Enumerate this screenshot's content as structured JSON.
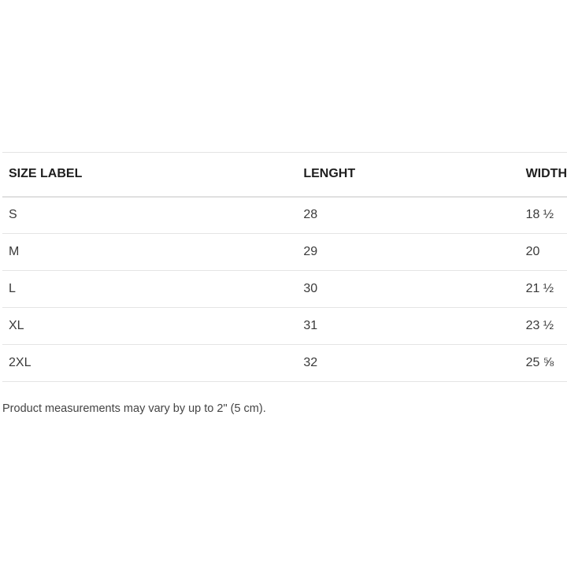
{
  "table": {
    "headers": [
      "SIZE LABEL",
      "LENGHT",
      "WIDTH"
    ],
    "rows": [
      [
        "S",
        "28",
        "18 ½"
      ],
      [
        "M",
        "29",
        "20"
      ],
      [
        "L",
        "30",
        "21 ½"
      ],
      [
        "XL",
        "31",
        "23 ½"
      ],
      [
        "2XL",
        "32",
        "25 ⅝"
      ]
    ]
  },
  "note": "Product measurements may vary by up to 2\" (5 cm)."
}
